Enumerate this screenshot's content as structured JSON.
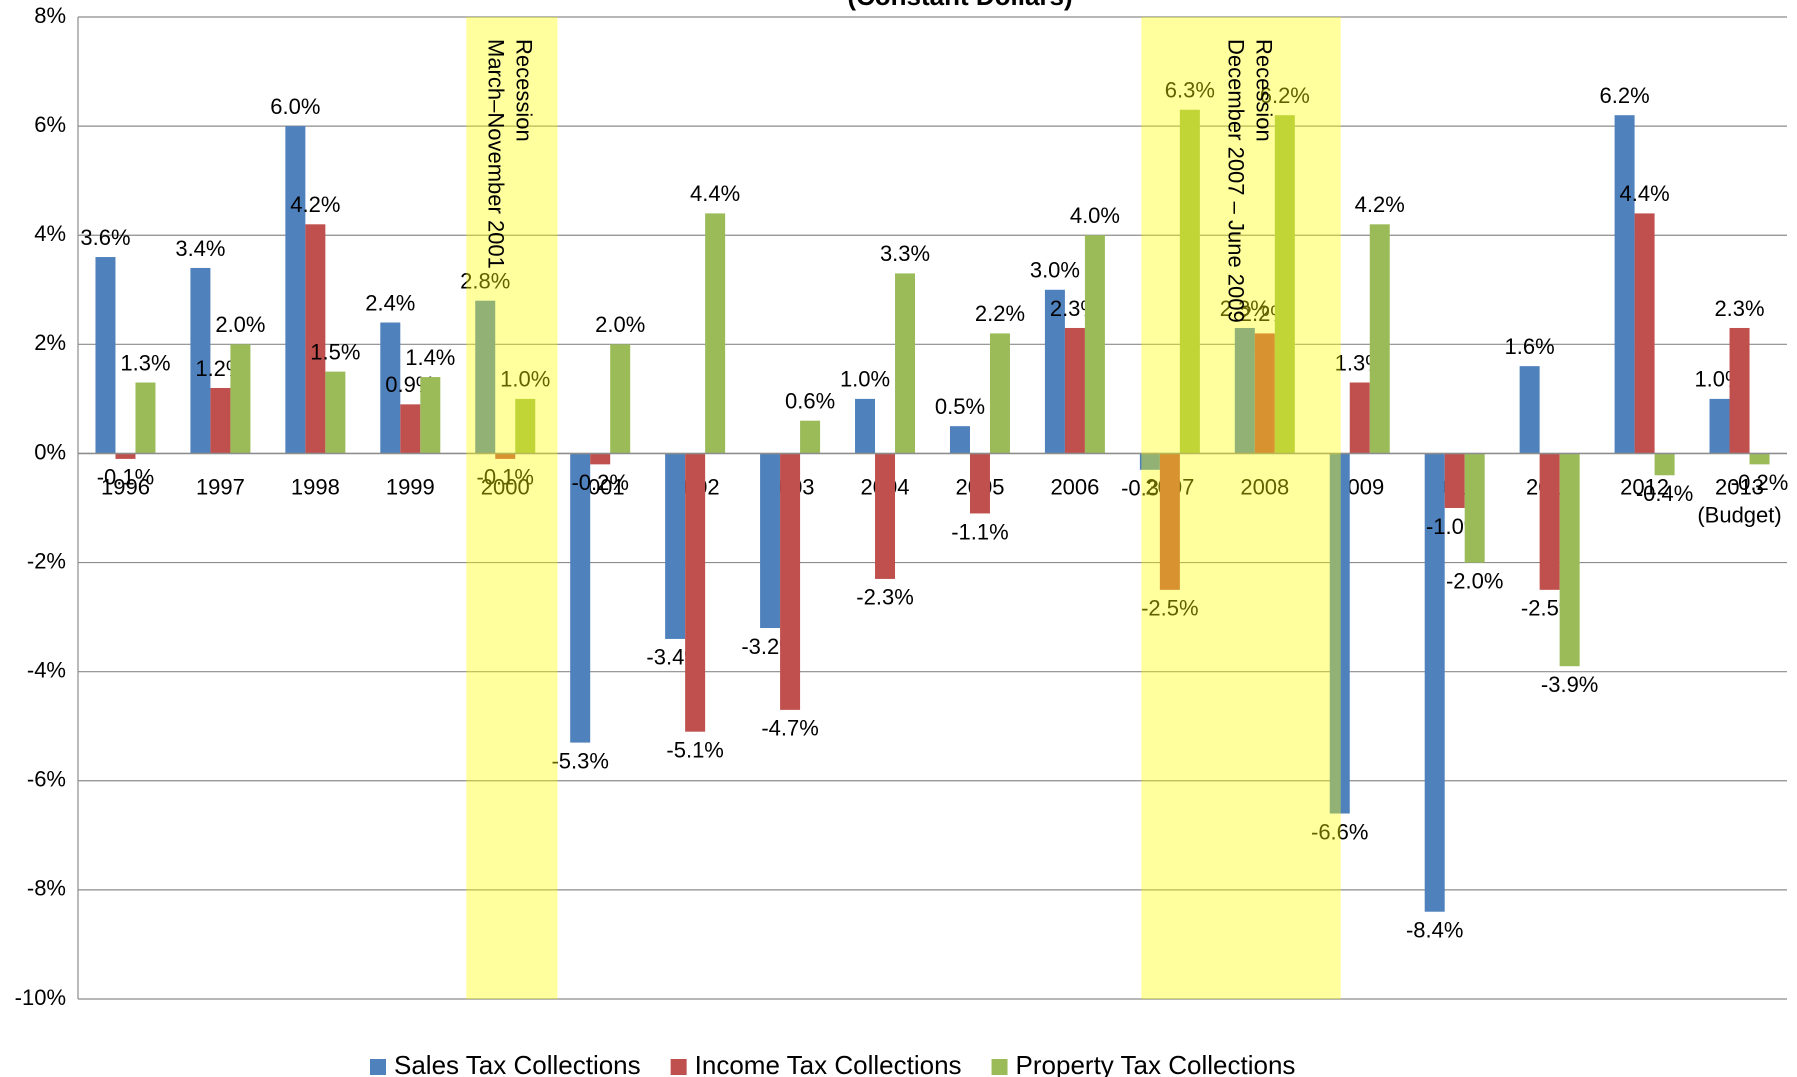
{
  "chart_data": {
    "type": "bar",
    "title": "(Constant Dollars)",
    "categories": [
      "1996",
      "1997",
      "1998",
      "1999",
      "2000",
      "2001",
      "2002",
      "2003",
      "2004",
      "2005",
      "2006",
      "2007",
      "2008",
      "2009",
      "2010",
      "2011",
      "2012",
      "2013 (Budget)"
    ],
    "series": [
      {
        "name": "Sales Tax Collections",
        "color": "#4f81bd",
        "values": [
          3.6,
          3.4,
          6.0,
          2.4,
          2.8,
          -5.3,
          -3.4,
          -3.2,
          1.0,
          0.5,
          3.0,
          -0.3,
          2.3,
          -6.6,
          -8.4,
          1.6,
          6.2,
          1.0
        ],
        "value_labels": [
          "3.6%",
          "3.4%",
          "6.0%",
          "2.4%",
          "2.8%",
          "-5.3%",
          "-3.4%",
          "-3.2%",
          "1.0%",
          "0.5%",
          "3.0%",
          "-0.3%",
          "2.3%",
          "-6.6%",
          "-8.4%",
          "1.6%",
          "6.2%",
          "1.0%"
        ]
      },
      {
        "name": "Income Tax Collections",
        "color": "#c0504d",
        "values": [
          -0.1,
          1.2,
          4.2,
          0.9,
          -0.1,
          -0.2,
          -5.1,
          -4.7,
          -2.3,
          -1.1,
          2.3,
          -2.5,
          2.2,
          1.3,
          -1.0,
          -2.5,
          4.4,
          2.3
        ],
        "value_labels": [
          "-0.1%",
          "1.2%",
          "4.2%",
          "0.9%",
          "-0.1%",
          "-0.2%",
          "-5.1%",
          "-4.7%",
          "-2.3%",
          "-1.1%",
          "2.3%",
          "-2.5%",
          "2.2%",
          "1.3%",
          "-1.0%",
          "-2.5%",
          "4.4%",
          "2.3%"
        ]
      },
      {
        "name": "Property Tax Collections",
        "color": "#9bbb59",
        "values": [
          1.3,
          2.0,
          1.5,
          1.4,
          1.0,
          2.0,
          4.4,
          0.6,
          3.3,
          2.2,
          4.0,
          6.3,
          6.2,
          4.2,
          -2.0,
          -3.9,
          -0.4,
          -0.2
        ],
        "value_labels": [
          "1.3%",
          "2.0%",
          "1.5%",
          "1.4%",
          "1.0%",
          "2.0%",
          "4.4%",
          "0.6%",
          "3.3%",
          "2.2%",
          "4.0%",
          "6.3%",
          "6.2%",
          "4.2%",
          "-2.0%",
          "-3.9%",
          "-0.4%",
          "-0.2%"
        ]
      }
    ],
    "ylim": [
      -10,
      8
    ],
    "yticks": [
      {
        "value": -10,
        "label": "-10%"
      },
      {
        "value": -8,
        "label": "-8%"
      },
      {
        "value": -6,
        "label": "-6%"
      },
      {
        "value": -4,
        "label": "-4%"
      },
      {
        "value": -2,
        "label": "-2%"
      },
      {
        "value": 0,
        "label": "0%"
      },
      {
        "value": 2,
        "label": "2%"
      },
      {
        "value": 4,
        "label": "4%"
      },
      {
        "value": 6,
        "label": "6%"
      },
      {
        "value": 8,
        "label": "8%"
      }
    ],
    "grid": true,
    "legend": "bottom",
    "annotations": [
      {
        "line1": "Recession",
        "line2": "March–November 2001"
      },
      {
        "line1": "Recession",
        "line2": "December 2007 – June 2009"
      }
    ]
  }
}
